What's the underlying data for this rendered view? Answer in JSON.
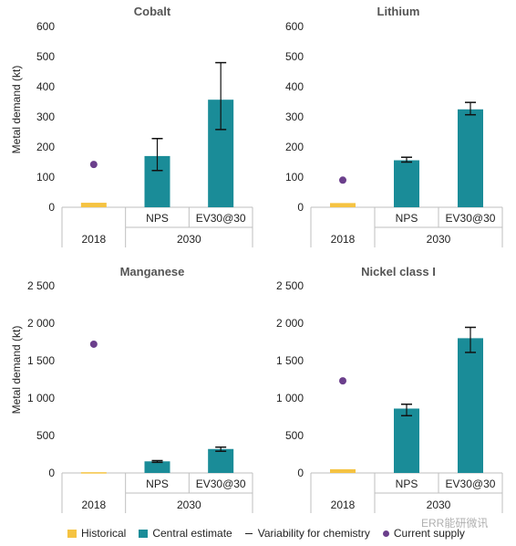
{
  "colors": {
    "historical": "#F5C342",
    "central": "#1A8C98",
    "current_supply": "#6B3F8C",
    "error_bar": "#111111",
    "axis": "#BFBFBF"
  },
  "legend": {
    "historical": "Historical",
    "central": "Central estimate",
    "variability": "Variability for chemistry",
    "current_supply": "Current supply"
  },
  "watermark": "ERR能研微讯",
  "chart_data": [
    {
      "type": "bar",
      "title": "Cobalt",
      "ylabel": "Metal demand (kt)",
      "ylim": [
        0,
        600
      ],
      "yticks": [
        0,
        100,
        200,
        300,
        400,
        500,
        600
      ],
      "ytick_labels": [
        "0",
        "100",
        "200",
        "300",
        "400",
        "500",
        "600"
      ],
      "categories": [
        "",
        "NPS",
        "EV30@30"
      ],
      "groups": [
        "2018",
        "2030"
      ],
      "historical": [
        15,
        null,
        null
      ],
      "central_estimate": [
        null,
        170,
        357
      ],
      "variability": [
        null,
        [
          122,
          228
        ],
        [
          258,
          480
        ]
      ],
      "current_supply": 142
    },
    {
      "type": "bar",
      "title": "Lithium",
      "ylabel": "",
      "ylim": [
        0,
        600
      ],
      "yticks": [
        0,
        100,
        200,
        300,
        400,
        500,
        600
      ],
      "ytick_labels": [
        "0",
        "100",
        "200",
        "300",
        "400",
        "500",
        "600"
      ],
      "categories": [
        "",
        "NPS",
        "EV30@30"
      ],
      "groups": [
        "2018",
        "2030"
      ],
      "historical": [
        14,
        null,
        null
      ],
      "central_estimate": [
        null,
        156,
        325
      ],
      "variability": [
        null,
        [
          150,
          166
        ],
        [
          307,
          348
        ]
      ],
      "current_supply": 90
    },
    {
      "type": "bar",
      "title": "Manganese",
      "ylabel": "Metal demand (kt)",
      "ylim": [
        0,
        2500
      ],
      "yticks": [
        0,
        500,
        1000,
        1500,
        2000,
        2500
      ],
      "ytick_labels": [
        "0",
        "500",
        "1 000",
        "1 500",
        "2 000",
        "2 500"
      ],
      "categories": [
        "",
        "NPS",
        "EV30@30"
      ],
      "groups": [
        "2018",
        "2030"
      ],
      "historical": [
        5,
        null,
        null
      ],
      "central_estimate": [
        null,
        155,
        320
      ],
      "variability": [
        null,
        [
          142,
          165
        ],
        [
          290,
          345
        ]
      ],
      "current_supply": 1720
    },
    {
      "type": "bar",
      "title": "Nickel class I",
      "ylabel": "",
      "ylim": [
        0,
        2500
      ],
      "yticks": [
        0,
        500,
        1000,
        1500,
        2000,
        2500
      ],
      "ytick_labels": [
        "0",
        "500",
        "1 000",
        "1 500",
        "2 000",
        "2 500"
      ],
      "categories": [
        "",
        "NPS",
        "EV30@30"
      ],
      "groups": [
        "2018",
        "2030"
      ],
      "historical": [
        50,
        null,
        null
      ],
      "central_estimate": [
        null,
        860,
        1800
      ],
      "variability": [
        null,
        [
          765,
          918
        ],
        [
          1610,
          1945
        ]
      ],
      "current_supply": 1230
    }
  ]
}
